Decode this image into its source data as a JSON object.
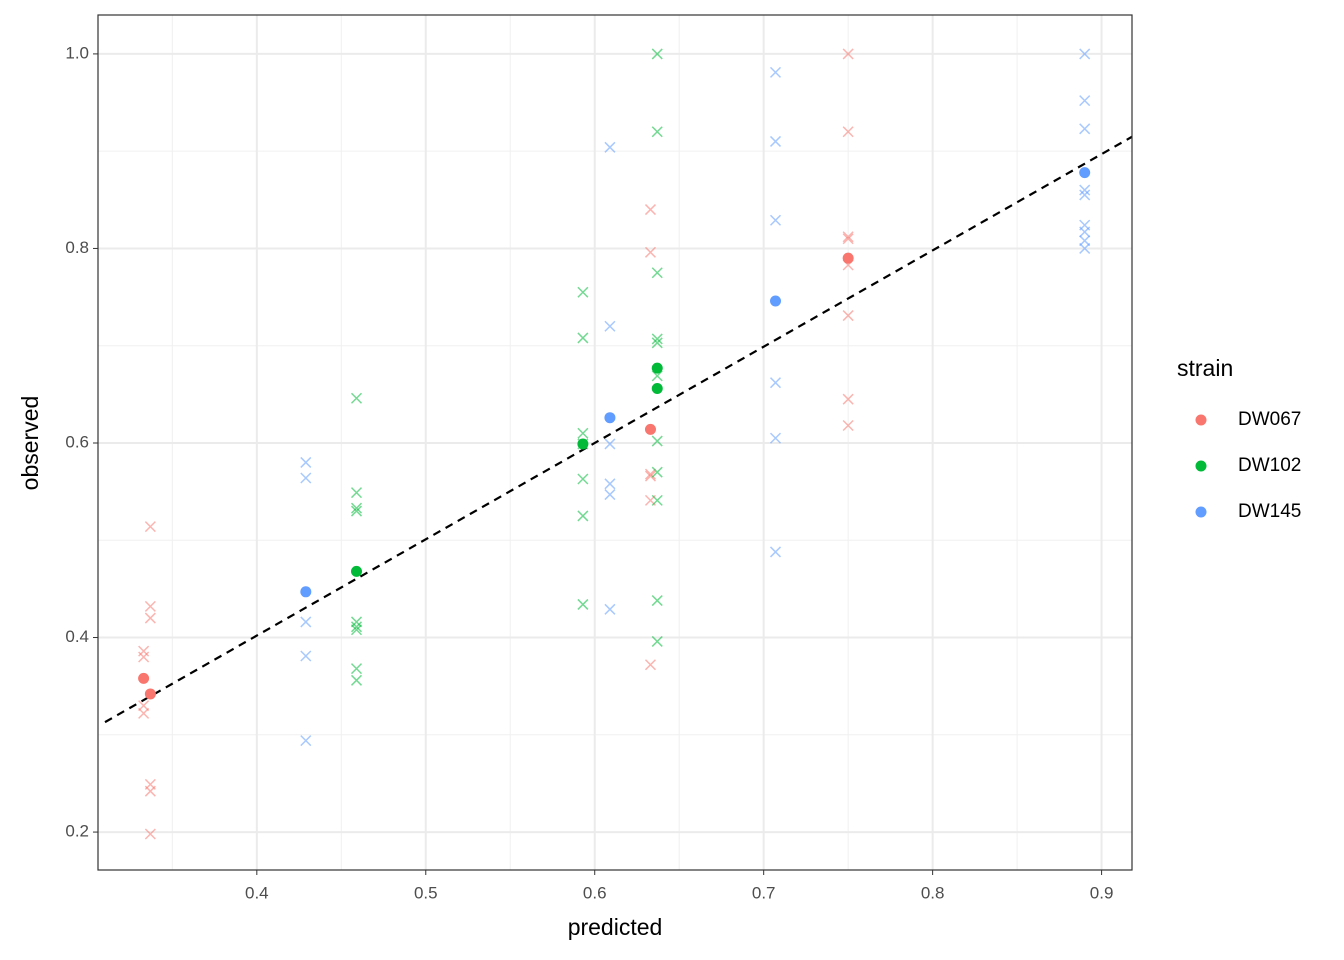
{
  "chart_data": {
    "type": "scatter",
    "x_label": "predicted",
    "y_label": "observed",
    "legend_title": "strain",
    "legend_position": "right",
    "xlim": [
      0.306,
      0.918
    ],
    "ylim": [
      0.161,
      1.04
    ],
    "xticks": [
      0.4,
      0.5,
      0.6,
      0.7,
      0.8,
      0.9
    ],
    "yticks": [
      0.2,
      0.4,
      0.6,
      0.8,
      {
        "value": 1,
        "label": "1.0"
      }
    ],
    "minor_xticks": [
      0.35,
      0.45,
      0.55,
      0.65,
      0.75,
      0.85
    ],
    "minor_yticks": [
      0.3,
      0.5,
      0.7,
      0.9
    ],
    "grid": true,
    "ref_line": {
      "slope": 0.99,
      "intercept": 0.006
    },
    "series": [
      {
        "name": "DW067",
        "color": "#F8766D",
        "x": [
          0.333,
          0.337,
          0.633,
          0.75
        ],
        "values": [
          0.358,
          0.342,
          0.614,
          0.79
        ],
        "replicate_x": [
          0.333,
          0.333,
          0.333,
          0.333,
          0.337,
          0.337,
          0.337,
          0.337,
          0.337,
          0.337,
          0.633,
          0.633,
          0.633,
          0.633,
          0.633,
          0.633,
          0.75,
          0.75,
          0.75,
          0.75,
          0.75,
          0.75,
          0.75,
          0.75
        ],
        "replicate_values": [
          0.386,
          0.38,
          0.33,
          0.322,
          0.514,
          0.432,
          0.42,
          0.249,
          0.242,
          0.198,
          0.84,
          0.796,
          0.568,
          0.566,
          0.541,
          0.372,
          1,
          0.92,
          0.812,
          0.81,
          0.783,
          0.731,
          0.645,
          0.618
        ]
      },
      {
        "name": "DW102",
        "color": "#00BA38",
        "x": [
          0.459,
          0.593,
          0.637,
          0.637
        ],
        "values": [
          0.468,
          0.599,
          0.656,
          0.677
        ],
        "replicate_x": [
          0.459,
          0.459,
          0.459,
          0.459,
          0.459,
          0.459,
          0.459,
          0.459,
          0.459,
          0.593,
          0.593,
          0.593,
          0.593,
          0.593,
          0.593,
          0.593,
          0.637,
          0.637,
          0.637,
          0.637,
          0.637,
          0.637,
          0.637,
          0.637,
          0.637,
          0.637,
          0.637
        ],
        "replicate_values": [
          0.646,
          0.549,
          0.533,
          0.53,
          0.416,
          0.411,
          0.408,
          0.368,
          0.356,
          0.755,
          0.708,
          0.61,
          0.599,
          0.563,
          0.525,
          0.434,
          1,
          0.92,
          0.775,
          0.707,
          0.703,
          0.669,
          0.602,
          0.57,
          0.541,
          0.438,
          0.396
        ]
      },
      {
        "name": "DW145",
        "color": "#619CFF",
        "x": [
          0.429,
          0.609,
          0.707,
          0.89
        ],
        "values": [
          0.447,
          0.626,
          0.746,
          0.878
        ],
        "replicate_x": [
          0.429,
          0.429,
          0.429,
          0.429,
          0.429,
          0.609,
          0.609,
          0.609,
          0.609,
          0.609,
          0.609,
          0.707,
          0.707,
          0.707,
          0.707,
          0.707,
          0.707,
          0.89,
          0.89,
          0.89,
          0.89,
          0.89,
          0.89,
          0.89,
          0.89,
          0.89
        ],
        "replicate_values": [
          0.58,
          0.564,
          0.416,
          0.381,
          0.294,
          0.904,
          0.72,
          0.599,
          0.558,
          0.547,
          0.429,
          0.981,
          0.91,
          0.829,
          0.662,
          0.605,
          0.488,
          1,
          0.952,
          0.923,
          0.86,
          0.855,
          0.824,
          0.817,
          0.808,
          0.8
        ]
      }
    ]
  }
}
